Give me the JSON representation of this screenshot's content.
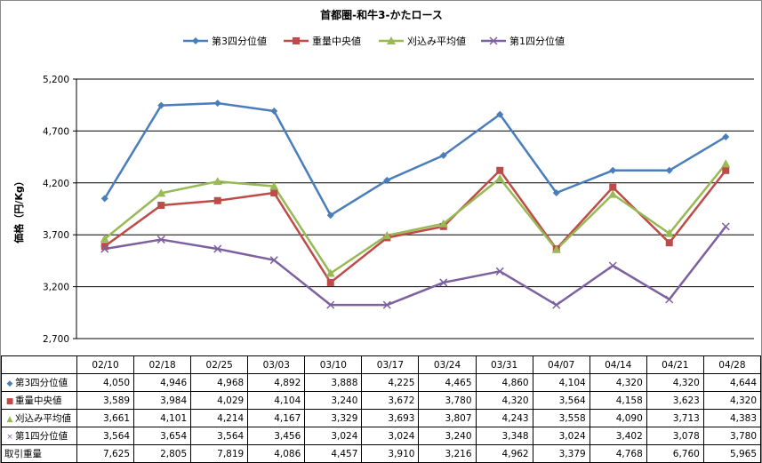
{
  "colors": {
    "q3": "#4a7ebb",
    "median": "#be4b48",
    "avg": "#98b954",
    "q1": "#7d60a0",
    "grid": "#000000"
  },
  "chart_data": {
    "type": "line",
    "title": "首都圏-和牛3-かたロース",
    "ylabel": "価格（円/Kg）",
    "ylim": [
      2700,
      5200
    ],
    "yticks": [
      "2,700",
      "3,200",
      "3,700",
      "4,200",
      "4,700",
      "5,200"
    ],
    "ytick_values": [
      2700,
      3200,
      3700,
      4200,
      4700,
      5200
    ],
    "grid": true,
    "legend_position": "top",
    "categories": [
      "02/10",
      "02/18",
      "02/25",
      "03/03",
      "03/10",
      "03/17",
      "03/24",
      "03/31",
      "04/07",
      "04/14",
      "04/21",
      "04/28"
    ],
    "series": [
      {
        "name": "第3四分位値",
        "key": "q3",
        "marker": "diamond",
        "values": [
          4050,
          4946,
          4968,
          4892,
          3888,
          4225,
          4465,
          4860,
          4104,
          4320,
          4320,
          4644
        ]
      },
      {
        "name": "重量中央値",
        "key": "median",
        "marker": "square",
        "values": [
          3589,
          3984,
          4029,
          4104,
          3240,
          3672,
          3780,
          4320,
          3564,
          4158,
          3623,
          4320
        ]
      },
      {
        "name": "刈込み平均値",
        "key": "avg",
        "marker": "triangle",
        "values": [
          3661,
          4101,
          4214,
          4167,
          3329,
          3693,
          3807,
          4243,
          3558,
          4090,
          3713,
          4383
        ]
      },
      {
        "name": "第1四分位値",
        "key": "q1",
        "marker": "x",
        "values": [
          3564,
          3654,
          3564,
          3456,
          3024,
          3024,
          3240,
          3348,
          3024,
          3402,
          3078,
          3780
        ]
      }
    ]
  },
  "table": {
    "dates": [
      "02/10",
      "02/18",
      "02/25",
      "03/03",
      "03/10",
      "03/17",
      "03/24",
      "03/31",
      "04/07",
      "04/14",
      "04/21",
      "04/28"
    ],
    "rows": [
      {
        "label": "第3四分位値",
        "marker": "◆",
        "color_key": "q3",
        "values": [
          "4,050",
          "4,946",
          "4,968",
          "4,892",
          "3,888",
          "4,225",
          "4,465",
          "4,860",
          "4,104",
          "4,320",
          "4,320",
          "4,644"
        ]
      },
      {
        "label": "重量中央値",
        "marker": "■",
        "color_key": "median",
        "values": [
          "3,589",
          "3,984",
          "4,029",
          "4,104",
          "3,240",
          "3,672",
          "3,780",
          "4,320",
          "3,564",
          "4,158",
          "3,623",
          "4,320"
        ]
      },
      {
        "label": "刈込み平均値",
        "marker": "▲",
        "color_key": "avg",
        "values": [
          "3,661",
          "4,101",
          "4,214",
          "4,167",
          "3,329",
          "3,693",
          "3,807",
          "4,243",
          "3,558",
          "4,090",
          "3,713",
          "4,383"
        ]
      },
      {
        "label": "第1四分位値",
        "marker": "×",
        "color_key": "q1",
        "values": [
          "3,564",
          "3,654",
          "3,564",
          "3,456",
          "3,024",
          "3,024",
          "3,240",
          "3,348",
          "3,024",
          "3,402",
          "3,078",
          "3,780"
        ]
      },
      {
        "label": "取引重量",
        "marker": "",
        "color_key": "",
        "values": [
          "7,625",
          "2,805",
          "7,819",
          "4,086",
          "4,457",
          "3,910",
          "3,216",
          "4,962",
          "3,379",
          "4,768",
          "6,760",
          "5,965"
        ]
      }
    ]
  }
}
